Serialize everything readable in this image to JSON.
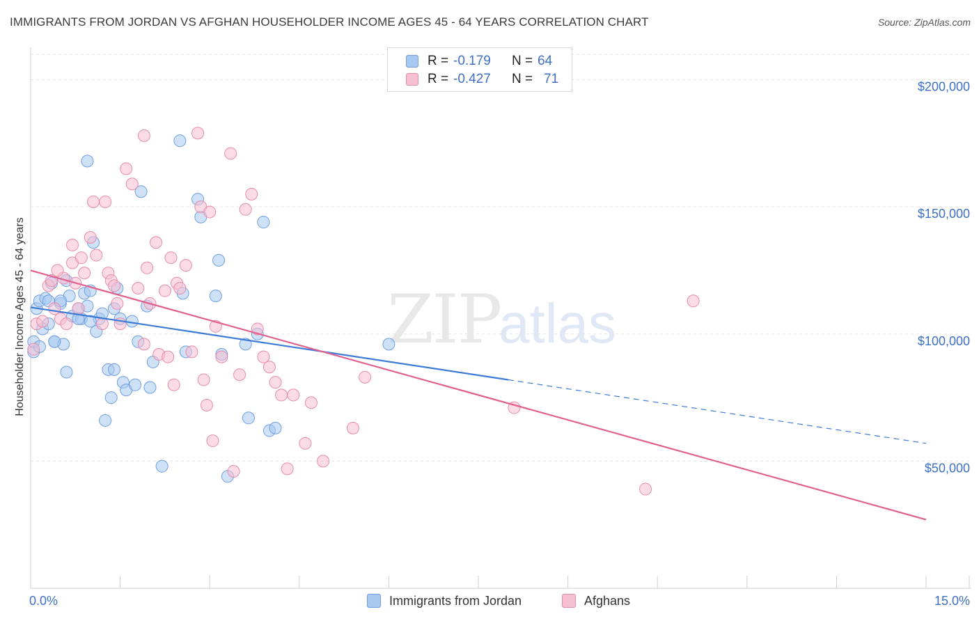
{
  "header": {
    "title": "IMMIGRANTS FROM JORDAN VS AFGHAN HOUSEHOLDER INCOME AGES 45 - 64 YEARS CORRELATION CHART",
    "source": "Source: ZipAtlas.com"
  },
  "watermark": {
    "part1": "ZIP",
    "part2": "atlas"
  },
  "stats": [
    {
      "r_label": "R =",
      "r_value": "-0.179",
      "n_label": "N =",
      "n_value": "64",
      "color": "#a8c8f0",
      "stroke": "#6f9ee0"
    },
    {
      "r_label": "R =",
      "r_value": "-0.427",
      "n_label": "N =",
      "n_value": "71",
      "color": "#f7c0d2",
      "stroke": "#e88aaa"
    }
  ],
  "legend": [
    {
      "label": "Immigrants from Jordan",
      "color": "#a8c8f0",
      "stroke": "#6f9ee0"
    },
    {
      "label": "Afghans",
      "color": "#f7c0d2",
      "stroke": "#e88aaa"
    }
  ],
  "chart_data": {
    "type": "scatter",
    "ylabel": "Householder Income Ages 45 - 64 years",
    "x_tick_labels": [
      "0.0%",
      "15.0%"
    ],
    "y_tick_labels": [
      "$50,000",
      "$100,000",
      "$150,000",
      "$200,000"
    ],
    "y_ticks": [
      50000,
      100000,
      150000,
      200000
    ],
    "xlim": [
      0,
      15
    ],
    "ylim": [
      0,
      210000
    ],
    "grid": true,
    "colors": {
      "jordan": "#3d7ad6",
      "afghan": "#e0608e",
      "jordan_fill": "#a8c8f0",
      "afghan_fill": "#f7c0d2"
    },
    "series": [
      {
        "name": "Immigrants from Jordan",
        "key": "jordan",
        "trend": {
          "x0": 0.0,
          "y0": 110500,
          "x1": 8.0,
          "y1": 82000,
          "dash_to_x": 15.0,
          "dash_to_y": 57000
        },
        "points": [
          [
            0.05,
            93000
          ],
          [
            0.05,
            97000
          ],
          [
            0.1,
            110000
          ],
          [
            0.15,
            113000
          ],
          [
            0.2,
            102000
          ],
          [
            0.25,
            114000
          ],
          [
            0.3,
            113000
          ],
          [
            0.35,
            120000
          ],
          [
            0.4,
            97000
          ],
          [
            0.5,
            112000
          ],
          [
            0.55,
            96000
          ],
          [
            0.6,
            85000
          ],
          [
            0.65,
            115000
          ],
          [
            0.7,
            107000
          ],
          [
            0.8,
            110000
          ],
          [
            0.85,
            106000
          ],
          [
            0.9,
            116000
          ],
          [
            0.95,
            111000
          ],
          [
            0.95,
            168000
          ],
          [
            1.0,
            117000
          ],
          [
            1.05,
            136000
          ],
          [
            1.1,
            101000
          ],
          [
            1.15,
            106000
          ],
          [
            1.2,
            108000
          ],
          [
            1.25,
            66000
          ],
          [
            1.3,
            86000
          ],
          [
            1.35,
            75000
          ],
          [
            1.4,
            110000
          ],
          [
            1.45,
            118000
          ],
          [
            1.5,
            106000
          ],
          [
            1.55,
            81000
          ],
          [
            1.6,
            78000
          ],
          [
            1.7,
            105000
          ],
          [
            1.75,
            80000
          ],
          [
            1.8,
            97000
          ],
          [
            1.85,
            156000
          ],
          [
            1.95,
            111000
          ],
          [
            2.0,
            79000
          ],
          [
            2.05,
            89000
          ],
          [
            2.2,
            48000
          ],
          [
            2.5,
            176000
          ],
          [
            2.55,
            116000
          ],
          [
            2.6,
            93000
          ],
          [
            2.8,
            153000
          ],
          [
            2.85,
            146000
          ],
          [
            3.1,
            115000
          ],
          [
            3.15,
            129000
          ],
          [
            3.2,
            92000
          ],
          [
            3.3,
            44000
          ],
          [
            3.6,
            96000
          ],
          [
            3.65,
            67000
          ],
          [
            3.8,
            100000
          ],
          [
            3.9,
            144000
          ],
          [
            4.0,
            62000
          ],
          [
            4.1,
            63000
          ],
          [
            6.0,
            96000
          ],
          [
            0.6,
            121000
          ],
          [
            0.4,
            97000
          ],
          [
            0.3,
            104000
          ],
          [
            1.0,
            105000
          ],
          [
            0.5,
            113000
          ],
          [
            0.8,
            106000
          ],
          [
            0.15,
            95000
          ],
          [
            1.4,
            86000
          ]
        ]
      },
      {
        "name": "Afghans",
        "key": "afghan",
        "trend": {
          "x0": 0.0,
          "y0": 125000,
          "x1": 15.0,
          "y1": 27000
        },
        "points": [
          [
            0.05,
            94000
          ],
          [
            0.1,
            104000
          ],
          [
            0.2,
            105000
          ],
          [
            0.3,
            119000
          ],
          [
            0.35,
            121000
          ],
          [
            0.4,
            110000
          ],
          [
            0.5,
            106000
          ],
          [
            0.55,
            122000
          ],
          [
            0.6,
            104000
          ],
          [
            0.7,
            128000
          ],
          [
            0.75,
            120000
          ],
          [
            0.8,
            110000
          ],
          [
            0.85,
            130000
          ],
          [
            0.9,
            124000
          ],
          [
            1.0,
            138000
          ],
          [
            1.05,
            152000
          ],
          [
            1.1,
            131000
          ],
          [
            1.2,
            104000
          ],
          [
            1.25,
            152000
          ],
          [
            1.3,
            124000
          ],
          [
            1.35,
            121000
          ],
          [
            1.4,
            119000
          ],
          [
            1.45,
            112000
          ],
          [
            1.5,
            104000
          ],
          [
            1.6,
            165000
          ],
          [
            1.7,
            159000
          ],
          [
            1.8,
            118000
          ],
          [
            1.9,
            178000
          ],
          [
            1.95,
            126000
          ],
          [
            2.0,
            112000
          ],
          [
            2.1,
            136000
          ],
          [
            2.15,
            92000
          ],
          [
            2.25,
            117000
          ],
          [
            2.3,
            91000
          ],
          [
            2.35,
            130000
          ],
          [
            2.4,
            80000
          ],
          [
            2.45,
            120000
          ],
          [
            2.5,
            118000
          ],
          [
            2.6,
            127000
          ],
          [
            2.7,
            93000
          ],
          [
            2.8,
            179000
          ],
          [
            2.85,
            150000
          ],
          [
            2.9,
            82000
          ],
          [
            2.95,
            72000
          ],
          [
            3.0,
            148000
          ],
          [
            3.05,
            58000
          ],
          [
            3.1,
            103000
          ],
          [
            3.2,
            91000
          ],
          [
            3.35,
            171000
          ],
          [
            3.4,
            46000
          ],
          [
            3.5,
            84000
          ],
          [
            3.6,
            149000
          ],
          [
            3.7,
            155000
          ],
          [
            3.8,
            102000
          ],
          [
            3.9,
            91000
          ],
          [
            4.0,
            87000
          ],
          [
            4.1,
            81000
          ],
          [
            4.2,
            76000
          ],
          [
            4.3,
            47000
          ],
          [
            4.4,
            76000
          ],
          [
            4.6,
            57000
          ],
          [
            4.7,
            73000
          ],
          [
            4.9,
            50000
          ],
          [
            5.4,
            63000
          ],
          [
            5.6,
            83000
          ],
          [
            8.1,
            71000
          ],
          [
            10.3,
            39000
          ],
          [
            11.1,
            113000
          ],
          [
            0.7,
            135000
          ],
          [
            1.9,
            96000
          ],
          [
            0.45,
            125000
          ]
        ]
      }
    ]
  }
}
